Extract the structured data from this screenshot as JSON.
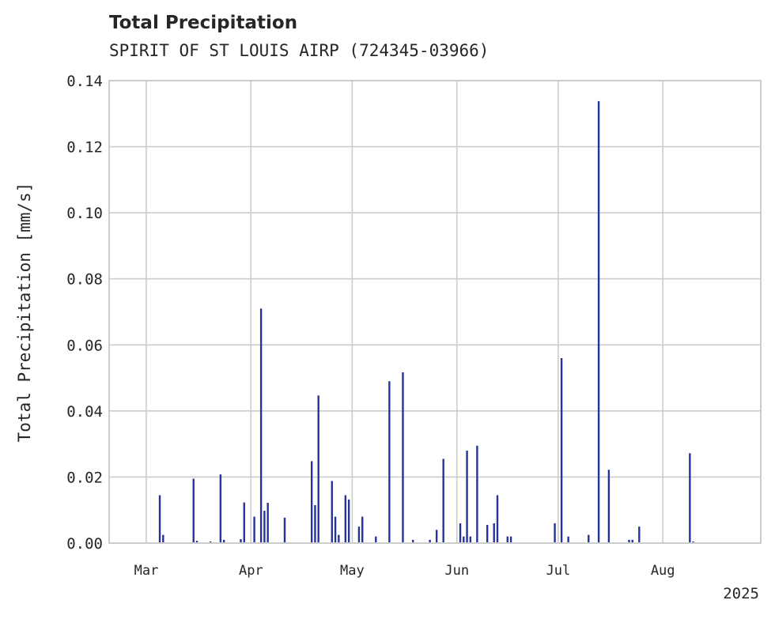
{
  "chart_data": {
    "type": "bar",
    "title": "Total Precipitation",
    "subtitle": "SPIRIT OF ST LOUIS AIRP (724345-03966)",
    "ylabel": "Total Precipitation [mm/s]",
    "xlabel": "",
    "year_label": "2025",
    "ylim": [
      0,
      0.14
    ],
    "xlim": [
      "2025-02-18",
      "2025-08-30"
    ],
    "yticks": [
      {
        "value": 0.0,
        "label": "0.00"
      },
      {
        "value": 0.02,
        "label": "0.02"
      },
      {
        "value": 0.04,
        "label": "0.04"
      },
      {
        "value": 0.06,
        "label": "0.06"
      },
      {
        "value": 0.08,
        "label": "0.08"
      },
      {
        "value": 0.1,
        "label": "0.10"
      },
      {
        "value": 0.12,
        "label": "0.12"
      },
      {
        "value": 0.14,
        "label": "0.14"
      }
    ],
    "xticks": [
      {
        "date": "2025-03-01",
        "label": "Mar"
      },
      {
        "date": "2025-04-01",
        "label": "Apr"
      },
      {
        "date": "2025-05-01",
        "label": "May"
      },
      {
        "date": "2025-06-01",
        "label": "Jun"
      },
      {
        "date": "2025-07-01",
        "label": "Jul"
      },
      {
        "date": "2025-08-01",
        "label": "Aug"
      }
    ],
    "grid": true,
    "bar_color": "#25349a",
    "series": [
      {
        "x": [
          "2025-03-05",
          "2025-03-06",
          "2025-03-15",
          "2025-03-16",
          "2025-03-20",
          "2025-03-23",
          "2025-03-24",
          "2025-03-29",
          "2025-03-30",
          "2025-04-02",
          "2025-04-04",
          "2025-04-05",
          "2025-04-06",
          "2025-04-11",
          "2025-04-19",
          "2025-04-20",
          "2025-04-21",
          "2025-04-25",
          "2025-04-26",
          "2025-04-27",
          "2025-04-29",
          "2025-04-30",
          "2025-05-03",
          "2025-05-04",
          "2025-05-08",
          "2025-05-12",
          "2025-05-16",
          "2025-05-19",
          "2025-05-24",
          "2025-05-26",
          "2025-05-28",
          "2025-06-02",
          "2025-06-03",
          "2025-06-04",
          "2025-06-05",
          "2025-06-07",
          "2025-06-10",
          "2025-06-12",
          "2025-06-13",
          "2025-06-16",
          "2025-06-17",
          "2025-06-30",
          "2025-07-02",
          "2025-07-04",
          "2025-07-10",
          "2025-07-13",
          "2025-07-16",
          "2025-07-22",
          "2025-07-23",
          "2025-07-25",
          "2025-08-09",
          "2025-08-10"
        ],
        "y": [
          0.0145,
          0.0025,
          0.0195,
          0.0007,
          0.0005,
          0.0208,
          0.001,
          0.0012,
          0.0123,
          0.008,
          0.071,
          0.0098,
          0.0122,
          0.0077,
          0.0248,
          0.0115,
          0.0447,
          0.0188,
          0.008,
          0.0025,
          0.0145,
          0.0132,
          0.005,
          0.008,
          0.002,
          0.049,
          0.0517,
          0.001,
          0.001,
          0.004,
          0.0255,
          0.006,
          0.002,
          0.028,
          0.002,
          0.0295,
          0.0055,
          0.006,
          0.0145,
          0.002,
          0.002,
          0.006,
          0.056,
          0.002,
          0.0025,
          0.1338,
          0.0222,
          0.001,
          0.001,
          0.005,
          0.0272,
          0.0005
        ]
      }
    ]
  }
}
